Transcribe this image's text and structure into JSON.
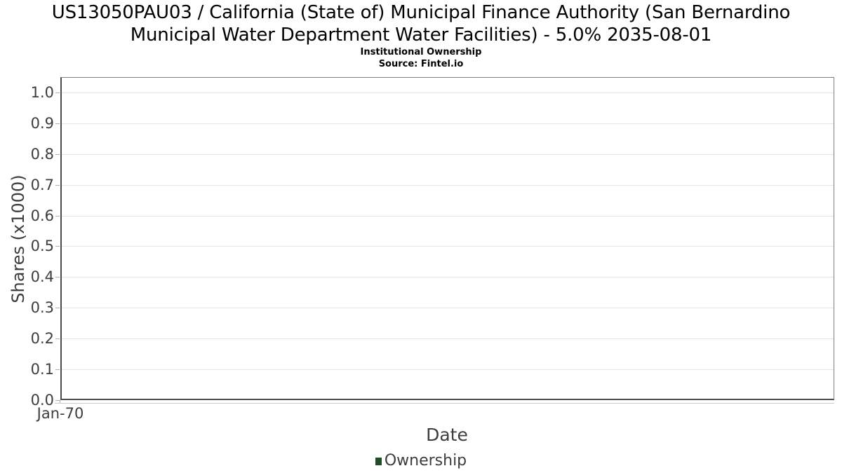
{
  "window": {
    "background": "#ffffff"
  },
  "chart_data": {
    "type": "line",
    "title": "US13050PAU03 / California (State of) Municipal Finance Authority (San Bernardino Municipal Water Department Water Facilities) - 5.0% 2035-08-01",
    "subtitle": "Institutional Ownership",
    "source": "Source: Fintel.io",
    "xlabel": "Date",
    "ylabel": "Shares (x1000)",
    "xticks": [
      "Jan-70"
    ],
    "yticks": [
      0.0,
      0.1,
      0.2,
      0.3,
      0.4,
      0.5,
      0.6,
      0.7,
      0.8,
      0.9,
      1.0
    ],
    "ylim": [
      0.0,
      1.05
    ],
    "grid": true,
    "legend_position": "bottom-center",
    "series": [
      {
        "name": "Ownership",
        "color": "#1e4d26",
        "values": []
      }
    ],
    "colors": {
      "background": "#ffffff",
      "grid": "#e6e6e6",
      "axis": "#4b4b4b",
      "frame": "#7e7e7e",
      "tick_mark": "#aeaeae",
      "label_text": "#3d3d3d",
      "title_text": "#000000"
    }
  }
}
